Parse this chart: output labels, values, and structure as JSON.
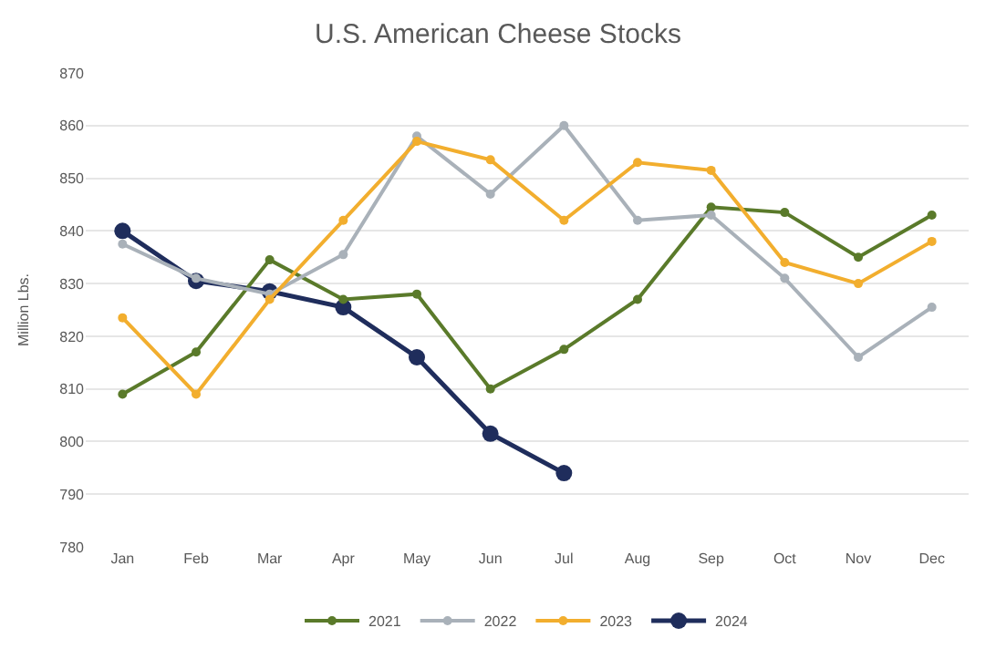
{
  "chart_data": {
    "type": "line",
    "title": "U.S. American Cheese Stocks",
    "ylabel": "Million Lbs.",
    "categories": [
      "Jan",
      "Feb",
      "Mar",
      "Apr",
      "May",
      "Jun",
      "Jul",
      "Aug",
      "Sep",
      "Oct",
      "Nov",
      "Dec"
    ],
    "series": [
      {
        "name": "2021",
        "color": "#5a7a2a",
        "values": [
          809,
          817,
          834.5,
          827,
          828,
          810,
          817.5,
          827,
          844.5,
          843.5,
          835,
          843
        ]
      },
      {
        "name": "2022",
        "color": "#a9b1b9",
        "values": [
          837.5,
          831,
          828,
          835.5,
          858,
          847,
          860,
          842,
          843,
          831,
          816,
          825.5
        ]
      },
      {
        "name": "2023",
        "color": "#f2ae2e",
        "values": [
          823.5,
          809,
          827,
          842,
          857,
          853.5,
          842,
          853,
          851.5,
          834,
          830,
          838
        ]
      },
      {
        "name": "2024",
        "color": "#1f2d5c",
        "values": [
          840,
          830.5,
          828.5,
          825.5,
          816,
          801.5,
          794,
          null,
          null,
          null,
          null,
          null
        ]
      }
    ],
    "ylim": [
      780,
      870
    ],
    "yticks": [
      780,
      790,
      800,
      810,
      820,
      830,
      840,
      850,
      860,
      870
    ],
    "grid": "y",
    "legend": "bottom",
    "marker": "circle",
    "line_style": "solid"
  }
}
